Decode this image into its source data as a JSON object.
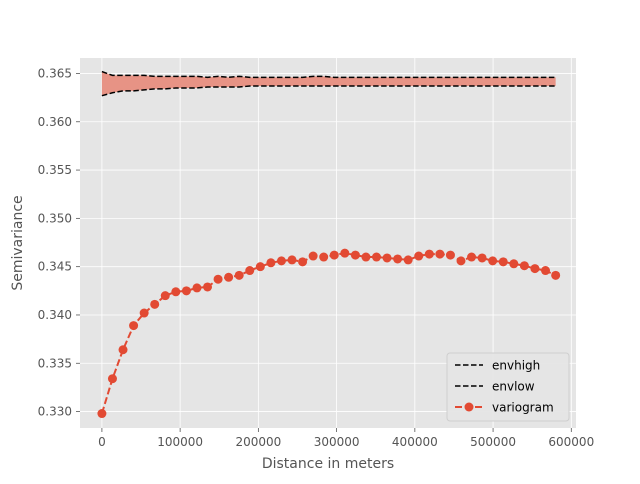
{
  "chart_data": {
    "type": "line",
    "title": "",
    "xlabel": "Distance in meters",
    "ylabel": "Semivariance",
    "xlim": [
      -28000,
      606000
    ],
    "ylim": [
      0.3283,
      0.3666
    ],
    "x_ticks": [
      0,
      100000,
      200000,
      300000,
      400000,
      500000,
      600000
    ],
    "x_tick_labels": [
      "0",
      "100000",
      "200000",
      "300000",
      "400000",
      "500000",
      "600000"
    ],
    "y_ticks": [
      0.33,
      0.335,
      0.34,
      0.345,
      0.35,
      0.355,
      0.36,
      0.365
    ],
    "y_tick_labels": [
      "0.330",
      "0.335",
      "0.340",
      "0.345",
      "0.350",
      "0.355",
      "0.360",
      "0.365"
    ],
    "grid": true,
    "legend_position": "lower-right",
    "colors": {
      "background": "#E5E5E5",
      "grid": "#FFFFFF",
      "variogram": "#E24A33",
      "envelope_fill": "#E79385",
      "envelope_line": "#000000",
      "tick_text": "#555555"
    },
    "x": [
      0,
      13500,
      27000,
      40500,
      54000,
      67500,
      81000,
      94500,
      108000,
      121500,
      135000,
      148500,
      162000,
      175500,
      189000,
      202500,
      216000,
      229500,
      243000,
      256500,
      270000,
      283500,
      297000,
      310500,
      324000,
      337500,
      351000,
      364500,
      378000,
      391500,
      405000,
      418500,
      432000,
      445500,
      459000,
      472500,
      486000,
      499500,
      513000,
      526500,
      540000,
      553500,
      567000,
      580000
    ],
    "series": [
      {
        "name": "envhigh",
        "style": "dashed",
        "color": "#000000",
        "values": [
          0.3652,
          0.3648,
          0.3648,
          0.3648,
          0.3648,
          0.3647,
          0.3647,
          0.3647,
          0.3647,
          0.3647,
          0.3646,
          0.3647,
          0.3646,
          0.3647,
          0.3646,
          0.3646,
          0.3646,
          0.3646,
          0.3646,
          0.3646,
          0.3647,
          0.3647,
          0.3646,
          0.3646,
          0.3646,
          0.3646,
          0.3646,
          0.3646,
          0.3646,
          0.3646,
          0.3646,
          0.3646,
          0.3646,
          0.3646,
          0.3646,
          0.3646,
          0.3646,
          0.3646,
          0.3646,
          0.3646,
          0.3646,
          0.3646,
          0.3646,
          0.3646
        ]
      },
      {
        "name": "envlow",
        "style": "dashed",
        "color": "#000000",
        "values": [
          0.3627,
          0.363,
          0.3632,
          0.3632,
          0.3633,
          0.3634,
          0.3634,
          0.3635,
          0.3635,
          0.3635,
          0.3636,
          0.3636,
          0.3636,
          0.3636,
          0.3637,
          0.3637,
          0.3637,
          0.3637,
          0.3637,
          0.3637,
          0.3637,
          0.3637,
          0.3637,
          0.3637,
          0.3637,
          0.3637,
          0.3637,
          0.3637,
          0.3637,
          0.3637,
          0.3637,
          0.3637,
          0.3637,
          0.3637,
          0.3637,
          0.3637,
          0.3637,
          0.3637,
          0.3637,
          0.3637,
          0.3637,
          0.3637,
          0.3637,
          0.3637
        ]
      },
      {
        "name": "variogram",
        "style": "dashed-markers",
        "color": "#E24A33",
        "values": [
          0.3298,
          0.3334,
          0.3364,
          0.3389,
          0.3402,
          0.3411,
          0.342,
          0.3424,
          0.3425,
          0.3428,
          0.3429,
          0.3437,
          0.3439,
          0.3441,
          0.3446,
          0.345,
          0.3454,
          0.3456,
          0.3457,
          0.3455,
          0.3461,
          0.346,
          0.3462,
          0.3464,
          0.3462,
          0.346,
          0.346,
          0.3459,
          0.3458,
          0.3457,
          0.3461,
          0.3463,
          0.3463,
          0.3462,
          0.3456,
          0.346,
          0.3459,
          0.3456,
          0.3455,
          0.3453,
          0.3451,
          0.3448,
          0.3446,
          0.3441
        ]
      }
    ]
  }
}
